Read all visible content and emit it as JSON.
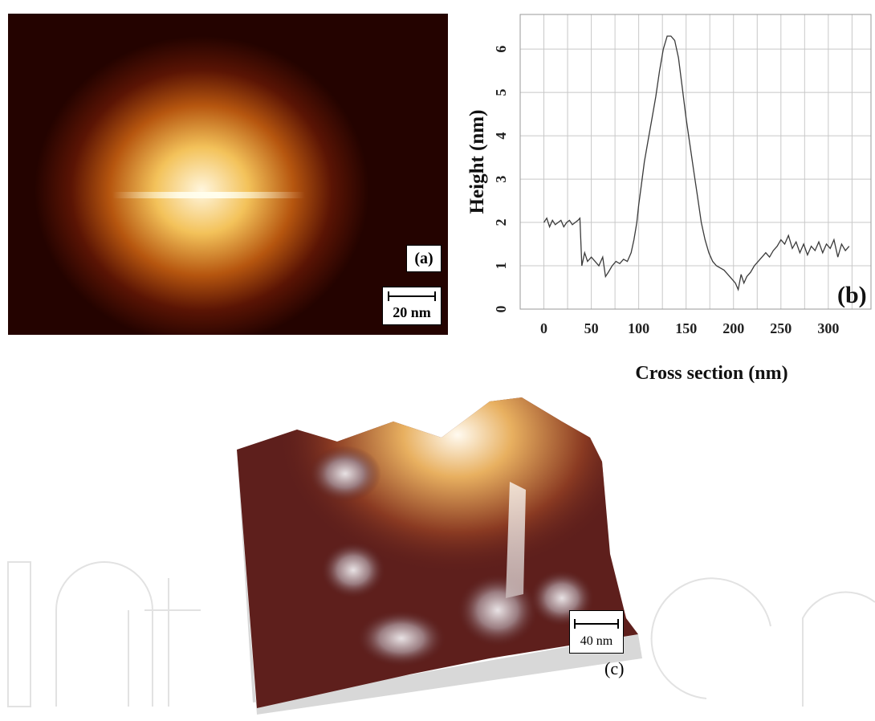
{
  "panel_a": {
    "label": "(a)",
    "scale_bar": "20 nm"
  },
  "panel_c": {
    "label": "(c)",
    "scale_bar": "40 nm"
  },
  "chart_data": [
    {
      "type": "line",
      "panel_label": "(b)",
      "xlabel": "Cross section (nm)",
      "ylabel": "Height (nm)",
      "xlim": [
        -25,
        345
      ],
      "ylim": [
        0,
        6.8
      ],
      "xticks": [
        0,
        50,
        100,
        150,
        200,
        250,
        300
      ],
      "yticks": [
        0,
        1,
        2,
        3,
        4,
        5,
        6
      ],
      "grid": true,
      "series": [
        {
          "x": [
            0,
            3,
            6,
            9,
            12,
            15,
            18,
            21,
            24,
            27,
            30,
            33,
            36,
            38,
            40,
            43,
            46,
            50,
            54,
            58,
            62,
            65,
            68,
            72,
            76,
            80,
            84,
            88,
            92,
            95,
            98,
            100,
            103,
            106,
            110,
            114,
            118,
            122,
            126,
            130,
            134,
            138,
            142,
            146,
            150,
            154,
            158,
            162,
            166,
            170,
            174,
            178,
            182,
            186,
            190,
            194,
            198,
            202,
            205,
            208,
            211,
            214,
            218,
            222,
            226,
            230,
            234,
            238,
            242,
            246,
            250,
            254,
            258,
            262,
            266,
            270,
            274,
            278,
            282,
            286,
            290,
            294,
            298,
            302,
            306,
            310,
            314,
            318,
            322
          ],
          "y": [
            2.0,
            2.1,
            1.9,
            2.05,
            1.95,
            2.0,
            2.05,
            1.9,
            2.0,
            2.05,
            1.95,
            2.0,
            2.05,
            2.1,
            1.0,
            1.3,
            1.1,
            1.2,
            1.1,
            1.0,
            1.2,
            0.75,
            0.85,
            1.0,
            1.1,
            1.05,
            1.15,
            1.1,
            1.3,
            1.6,
            2.0,
            2.4,
            2.9,
            3.4,
            3.9,
            4.4,
            4.9,
            5.5,
            6.0,
            6.3,
            6.3,
            6.2,
            5.8,
            5.1,
            4.4,
            3.8,
            3.2,
            2.6,
            2.0,
            1.6,
            1.3,
            1.1,
            1.0,
            0.95,
            0.9,
            0.8,
            0.7,
            0.6,
            0.45,
            0.8,
            0.6,
            0.75,
            0.85,
            1.0,
            1.1,
            1.2,
            1.3,
            1.2,
            1.35,
            1.45,
            1.6,
            1.5,
            1.7,
            1.4,
            1.55,
            1.3,
            1.5,
            1.25,
            1.45,
            1.35,
            1.55,
            1.3,
            1.5,
            1.4,
            1.6,
            1.2,
            1.5,
            1.35,
            1.45
          ]
        }
      ]
    }
  ]
}
